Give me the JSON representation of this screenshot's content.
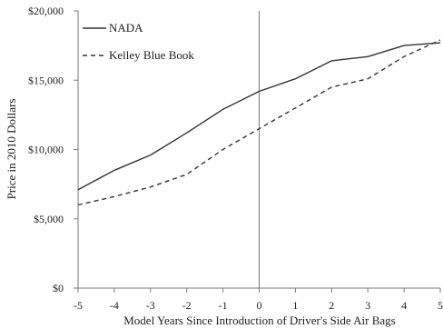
{
  "chart_data": {
    "type": "line",
    "title": "",
    "xlabel": "Model Years Since Introduction of Driver's Side Air Bags",
    "ylabel": "Price in 2010 Dollars",
    "x": [
      -5,
      -4,
      -3,
      -2,
      -1,
      0,
      1,
      2,
      3,
      4,
      5
    ],
    "xlim": [
      -5,
      5
    ],
    "ylim": [
      0,
      20000
    ],
    "x_tick_labels": [
      "-5",
      "-4",
      "-3",
      "-2",
      "-1",
      "0",
      "1",
      "2",
      "3",
      "4",
      "5"
    ],
    "y_ticks": [
      0,
      5000,
      10000,
      15000,
      20000
    ],
    "y_tick_labels": [
      "$0",
      "$5,000",
      "$10,000",
      "$15,000",
      "$20,000"
    ],
    "grid": false,
    "reference_line_x": 0,
    "legend_position": "top-left",
    "series": [
      {
        "name": "NADA",
        "style": "solid",
        "color": "#333333",
        "values": [
          7100,
          8500,
          9600,
          11200,
          12900,
          14200,
          15100,
          16400,
          16700,
          17500,
          17700
        ]
      },
      {
        "name": "Kelley Blue Book",
        "style": "dashed",
        "color": "#333333",
        "values": [
          6000,
          6600,
          7300,
          8200,
          10000,
          11500,
          13000,
          14500,
          15100,
          16700,
          17900
        ]
      }
    ]
  }
}
